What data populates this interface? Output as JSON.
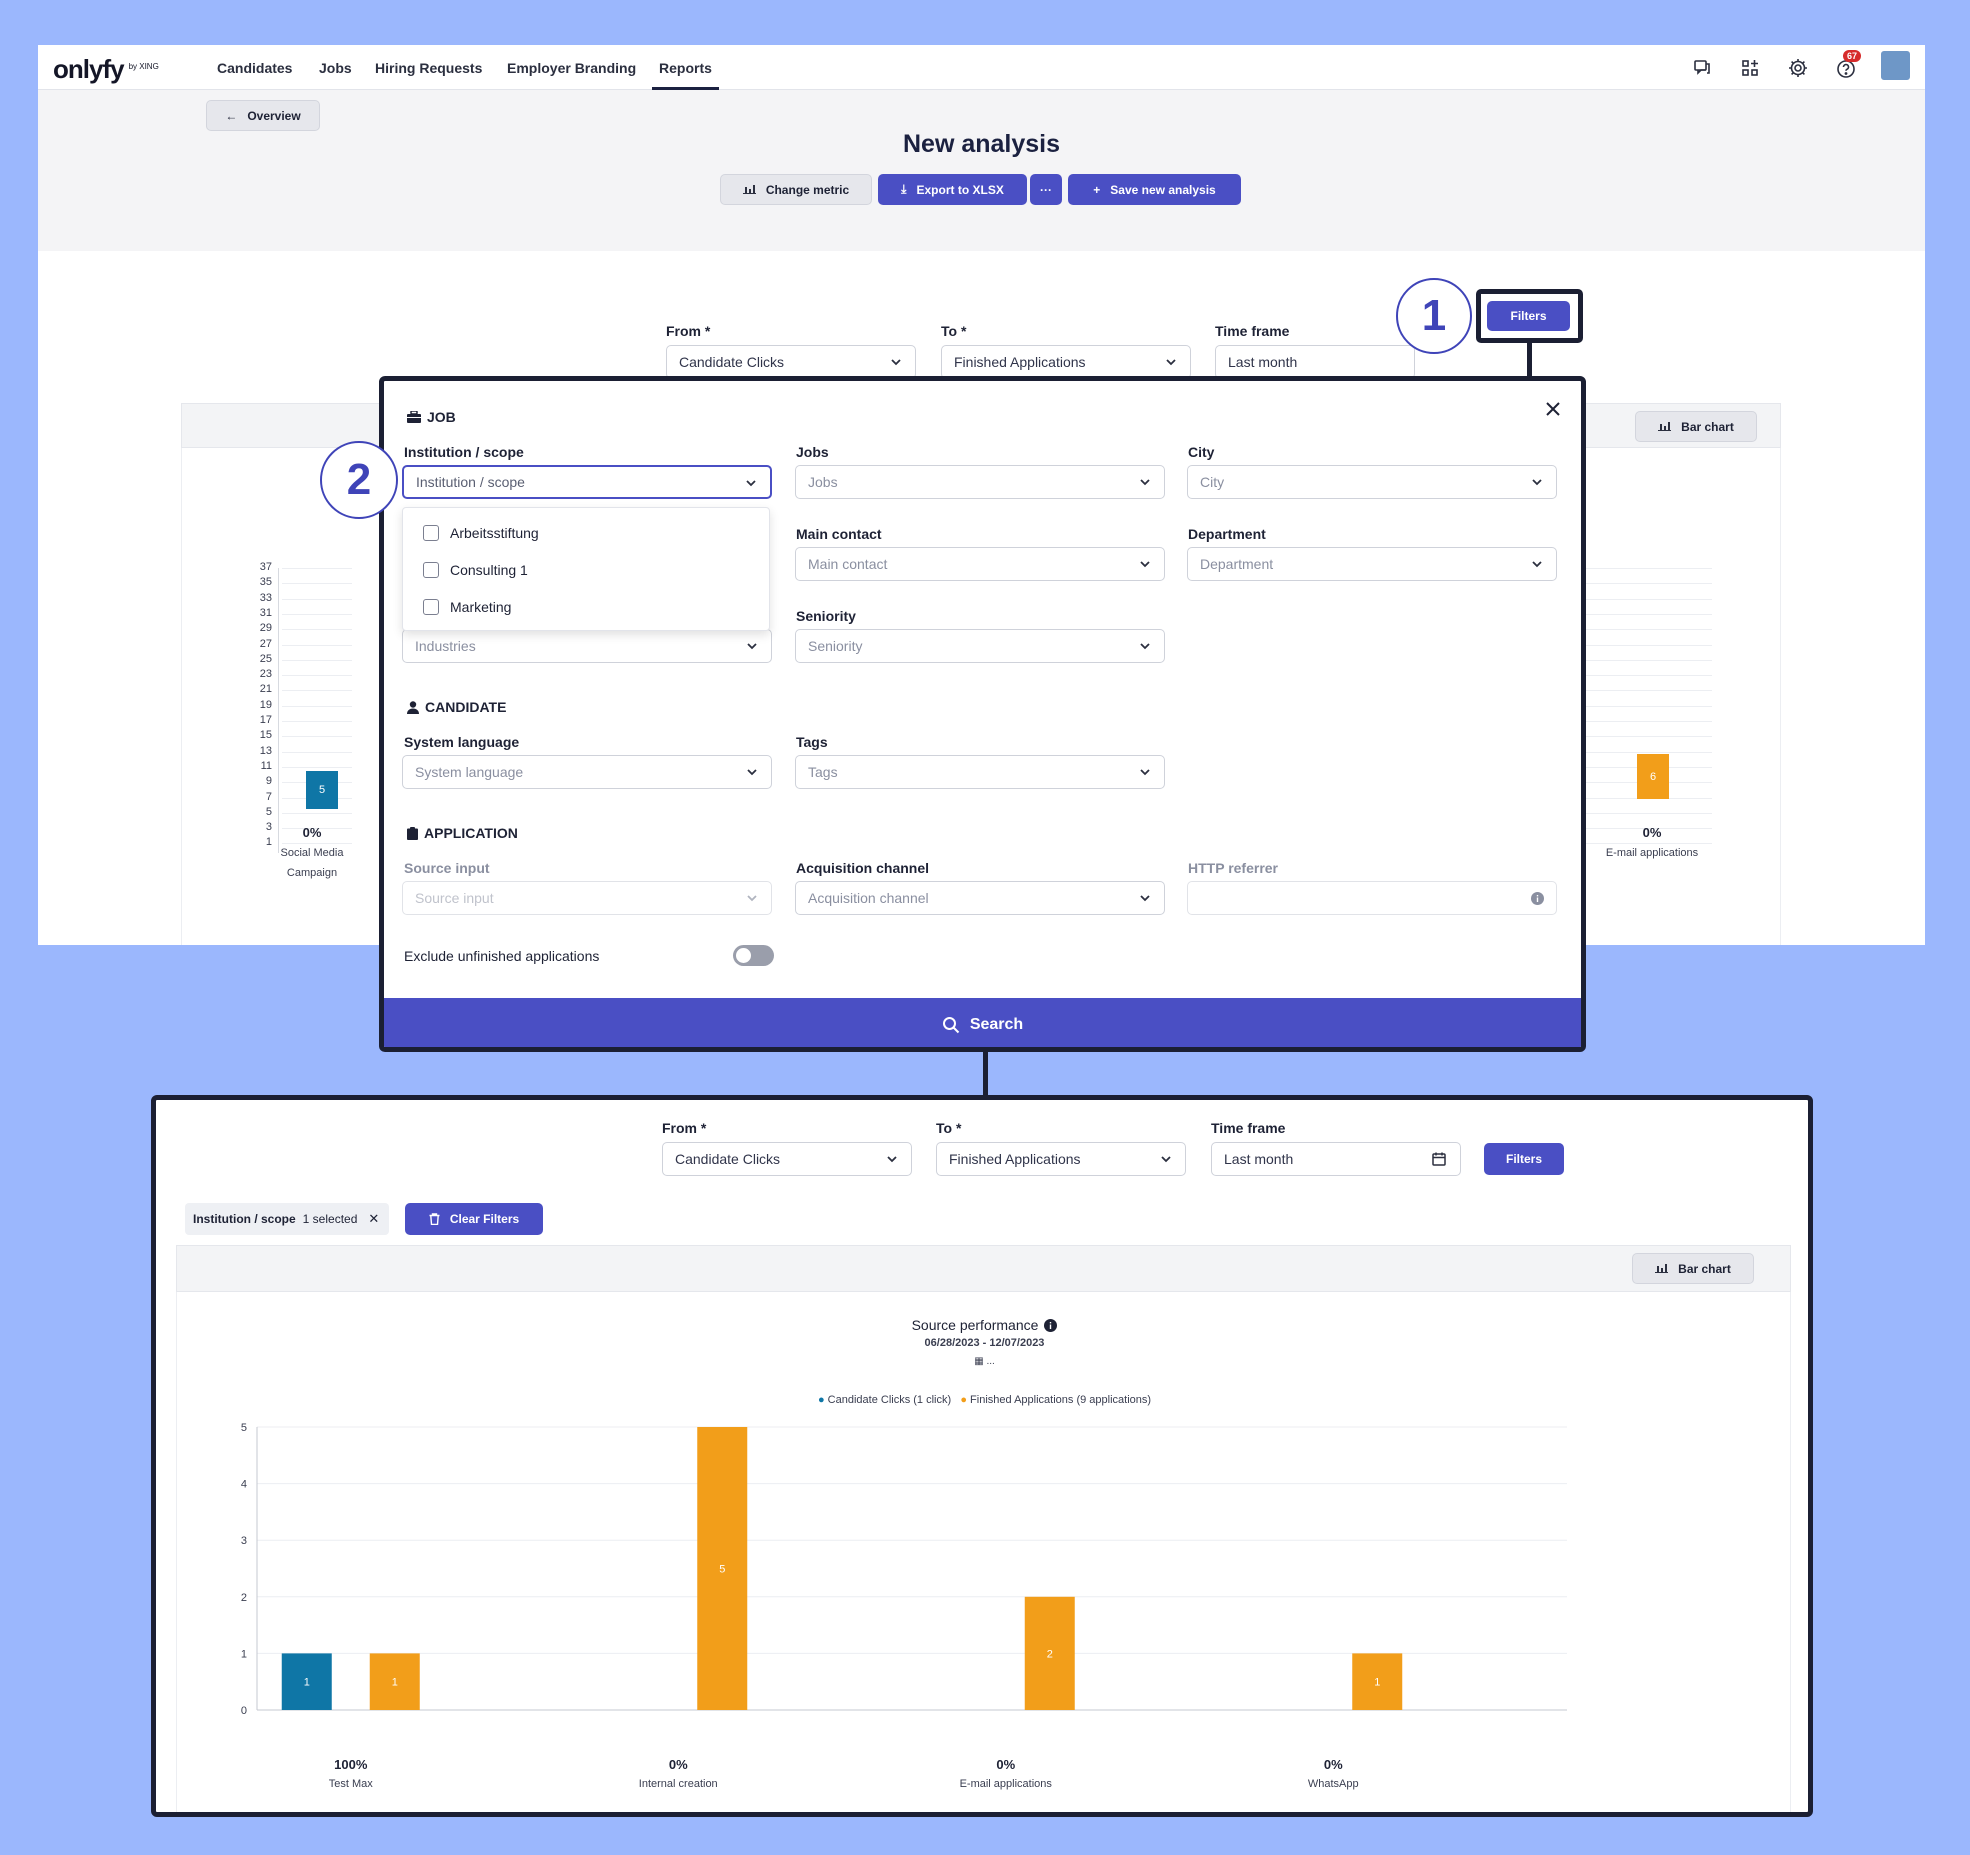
{
  "app": {
    "logo": "onlyfy",
    "logo_sub": "by XING",
    "nav": [
      "Candidates",
      "Jobs",
      "Hiring Requests",
      "Employer Branding",
      "Reports"
    ],
    "active_nav": "Reports",
    "notification_count": "67",
    "back_label": "Overview",
    "page_title": "New analysis",
    "toolbar": {
      "change_metric": "Change metric",
      "export": "Export to XLSX",
      "more": "···",
      "save": "Save new analysis"
    },
    "form": {
      "from_label": "From",
      "from_value": "Candidate Clicks",
      "to_label": "To",
      "to_value": "Finished Applications",
      "timeframe_label": "Time frame",
      "timeframe_value": "Last month",
      "filters_label": "Filters",
      "required_mark": "*"
    },
    "bar_chart_label": "Bar chart",
    "bg_chart": {
      "y_ticks": [
        "37",
        "35",
        "33",
        "31",
        "29",
        "27",
        "25",
        "23",
        "21",
        "19",
        "17",
        "15",
        "13",
        "11",
        "9",
        "7",
        "5",
        "3",
        "1"
      ],
      "left_bar_value": "5",
      "left_pct": "0%",
      "left_cat": [
        "Social Media",
        "Campaign"
      ],
      "right_bar_value": "6",
      "right_pct": "0%",
      "right_cat": "E-mail applications"
    }
  },
  "callouts": {
    "one": "1",
    "two": "2"
  },
  "filter_modal": {
    "sections": {
      "job": "JOB",
      "candidate": "CANDIDATE",
      "application": "APPLICATION"
    },
    "fields": {
      "institution": {
        "label": "Institution / scope",
        "placeholder": "Institution / scope"
      },
      "jobs": {
        "label": "Jobs",
        "placeholder": "Jobs"
      },
      "city": {
        "label": "City",
        "placeholder": "City"
      },
      "main_contact": {
        "label": "Main contact",
        "placeholder": "Main contact"
      },
      "department": {
        "label": "Department",
        "placeholder": "Department"
      },
      "seniority": {
        "label": "Seniority",
        "placeholder": "Seniority"
      },
      "industries": {
        "placeholder": "Industries"
      },
      "system_language": {
        "label": "System language",
        "placeholder": "System language"
      },
      "tags": {
        "label": "Tags",
        "placeholder": "Tags"
      },
      "source_input": {
        "label": "Source input",
        "placeholder": "Source input"
      },
      "acquisition_channel": {
        "label": "Acquisition channel",
        "placeholder": "Acquisition channel"
      },
      "http_referrer": {
        "label": "HTTP referrer",
        "value": ""
      }
    },
    "institution_options": [
      "Arbeitsstiftung",
      "Consulting 1",
      "Marketing"
    ],
    "exclude_label": "Exclude unfinished applications",
    "search_label": "Search"
  },
  "result": {
    "form": {
      "from_label": "From",
      "from_value": "Candidate Clicks",
      "to_label": "To",
      "to_value": "Finished Applications",
      "timeframe_label": "Time frame",
      "timeframe_value": "Last month",
      "filters_label": "Filters"
    },
    "chip": {
      "name": "Institution / scope",
      "count": "1 selected"
    },
    "clear_filters": "Clear Filters",
    "bar_chart_label": "Bar chart",
    "chart_title": "Source performance",
    "date_range": "06/28/2023 - 12/07/2023",
    "date_extra": "...",
    "legend": {
      "clicks": "Candidate Clicks (1 click)",
      "apps": "Finished Applications (9 applications)"
    },
    "percentages": [
      "100%",
      "0%",
      "0%",
      "0%"
    ]
  },
  "colors": {
    "accent": "#4a4fc4",
    "clicks": "#0f76a6",
    "apps": "#f29e1a"
  },
  "chart_data": {
    "type": "bar",
    "title": "Source performance",
    "categories": [
      "Test Max",
      "Internal creation",
      "E-mail applications",
      "WhatsApp"
    ],
    "series": [
      {
        "name": "Candidate Clicks",
        "values": [
          1,
          0,
          0,
          0
        ]
      },
      {
        "name": "Finished Applications",
        "values": [
          1,
          5,
          2,
          1
        ]
      }
    ],
    "ylim": [
      0,
      5
    ],
    "yticks": [
      0,
      1,
      2,
      3,
      4,
      5
    ],
    "legend": "top-center",
    "grid": true
  }
}
